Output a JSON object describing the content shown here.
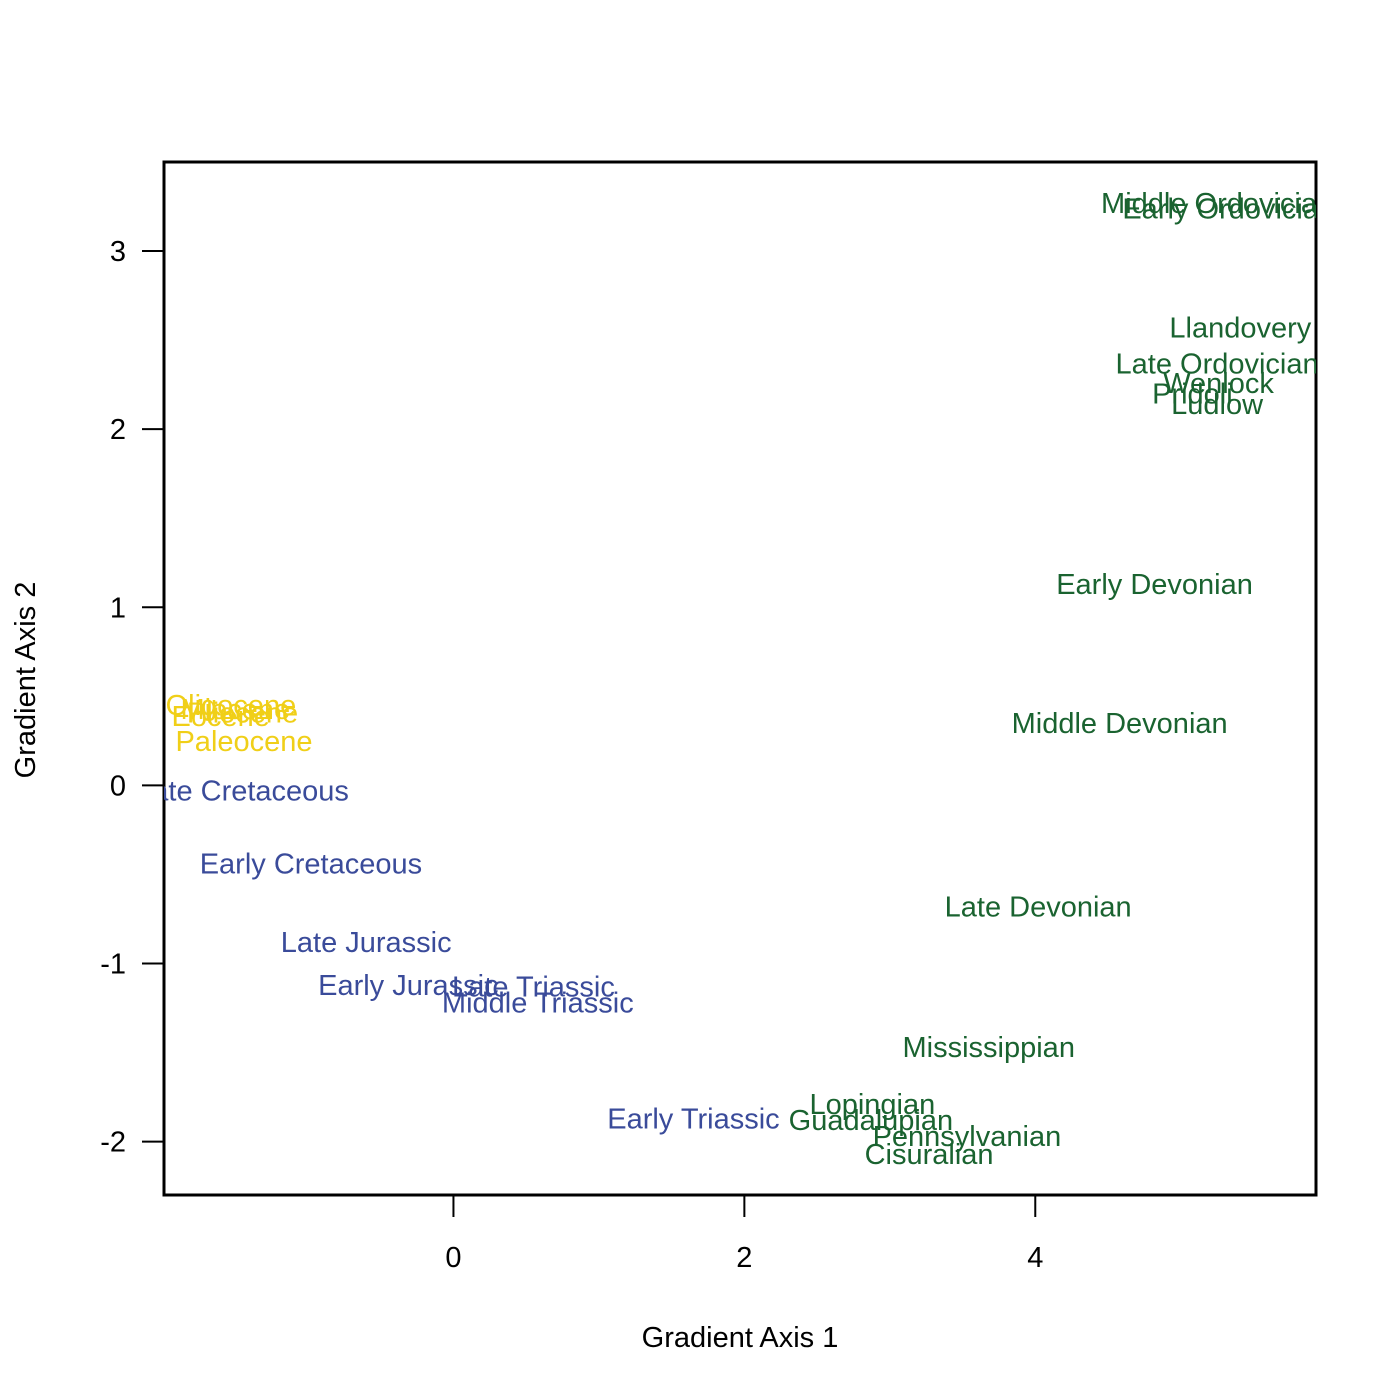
{
  "chart_data": {
    "type": "scatter",
    "title": "",
    "xlabel": "Gradient Axis 1",
    "ylabel": "Gradient Axis 2",
    "xlim": [
      -1.99,
      5.93
    ],
    "ylim": [
      -2.3,
      3.5
    ],
    "x_ticks": [
      0,
      2,
      4
    ],
    "y_ticks": [
      -2,
      -1,
      0,
      1,
      2,
      3
    ],
    "grid": false,
    "colors": {
      "paleozoic": "#1a6330",
      "mesozoic": "#3a4b9a",
      "cenozoic": "#f0cf18"
    },
    "points": [
      {
        "label": "Middle Ordovician",
        "x": 5.25,
        "y": 3.27,
        "group": "paleozoic"
      },
      {
        "label": "Early Ordovician",
        "x": 5.33,
        "y": 3.24,
        "group": "paleozoic"
      },
      {
        "label": "Llandovery",
        "x": 5.41,
        "y": 2.57,
        "group": "paleozoic"
      },
      {
        "label": "Late Ordovician",
        "x": 5.25,
        "y": 2.37,
        "group": "paleozoic"
      },
      {
        "label": "Wenlock",
        "x": 5.26,
        "y": 2.26,
        "group": "paleozoic"
      },
      {
        "label": "Pridoli",
        "x": 5.08,
        "y": 2.2,
        "group": "paleozoic"
      },
      {
        "label": "Ludlow",
        "x": 5.25,
        "y": 2.14,
        "group": "paleozoic"
      },
      {
        "label": "Early Devonian",
        "x": 4.82,
        "y": 1.13,
        "group": "paleozoic"
      },
      {
        "label": "Middle Devonian",
        "x": 4.58,
        "y": 0.35,
        "group": "paleozoic"
      },
      {
        "label": "Late Devonian",
        "x": 4.02,
        "y": -0.68,
        "group": "paleozoic"
      },
      {
        "label": "Mississippian",
        "x": 3.68,
        "y": -1.47,
        "group": "paleozoic"
      },
      {
        "label": "Lopingian",
        "x": 2.88,
        "y": -1.79,
        "group": "paleozoic"
      },
      {
        "label": "Guadalupian",
        "x": 2.87,
        "y": -1.88,
        "group": "paleozoic"
      },
      {
        "label": "Pennsylvanian",
        "x": 3.53,
        "y": -1.97,
        "group": "paleozoic"
      },
      {
        "label": "Cisuralian",
        "x": 3.27,
        "y": -2.07,
        "group": "paleozoic"
      },
      {
        "label": "Late Cretaceous",
        "x": -1.45,
        "y": -0.03,
        "group": "mesozoic"
      },
      {
        "label": "Early Cretaceous",
        "x": -0.98,
        "y": -0.44,
        "group": "mesozoic"
      },
      {
        "label": "Late Jurassic",
        "x": -0.6,
        "y": -0.88,
        "group": "mesozoic"
      },
      {
        "label": "Early Jurassic",
        "x": -0.31,
        "y": -1.12,
        "group": "mesozoic"
      },
      {
        "label": "Late Triassic",
        "x": 0.55,
        "y": -1.13,
        "group": "mesozoic"
      },
      {
        "label": "Middle Triassic",
        "x": 0.58,
        "y": -1.22,
        "group": "mesozoic"
      },
      {
        "label": "Early Triassic",
        "x": 1.65,
        "y": -1.87,
        "group": "mesozoic"
      },
      {
        "label": "Oligocene",
        "x": -1.53,
        "y": 0.45,
        "group": "cenozoic"
      },
      {
        "label": "Miocene",
        "x": -1.5,
        "y": 0.43,
        "group": "cenozoic"
      },
      {
        "label": "Pliocene",
        "x": -1.45,
        "y": 0.41,
        "group": "cenozoic"
      },
      {
        "label": "Eocene",
        "x": -1.6,
        "y": 0.39,
        "group": "cenozoic"
      },
      {
        "label": "Paleocene",
        "x": -1.44,
        "y": 0.25,
        "group": "cenozoic"
      }
    ]
  }
}
